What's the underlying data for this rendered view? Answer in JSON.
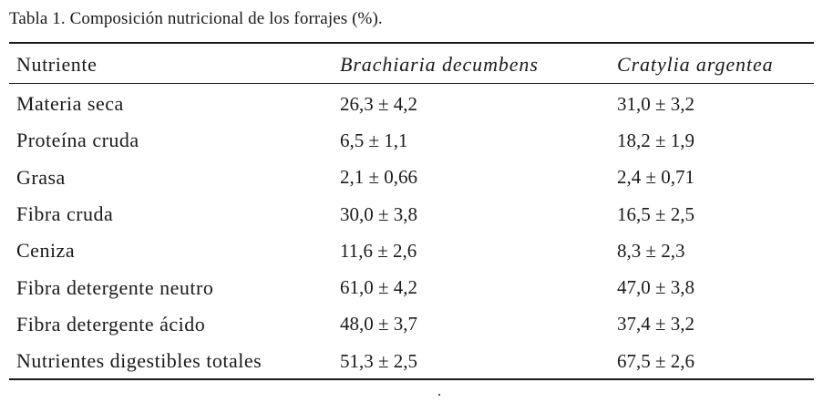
{
  "caption": "Tabla 1. Composición nutricional de los forrajes (%).",
  "table": {
    "headers": [
      "Nutriente",
      "Brachiaria decumbens",
      "Cratylia argentea"
    ],
    "rows": [
      {
        "nutrient": "Materia seca",
        "brachiaria": "26,3 ± 4,2",
        "cratylia": "31,0 ± 3,2"
      },
      {
        "nutrient": "Proteína cruda",
        "brachiaria": "6,5 ± 1,1",
        "cratylia": "18,2 ± 1,9"
      },
      {
        "nutrient": "Grasa",
        "brachiaria": "2,1 ± 0,66",
        "cratylia": "2,4 ± 0,71"
      },
      {
        "nutrient": "Fibra cruda",
        "brachiaria": "30,0 ± 3,8",
        "cratylia": "16,5 ± 2,5"
      },
      {
        "nutrient": "Ceniza",
        "brachiaria": "11,6 ± 2,6",
        "cratylia": "8,3 ± 2,3"
      },
      {
        "nutrient": "Fibra detergente neutro",
        "brachiaria": "61,0 ± 4,2",
        "cratylia": "47,0 ± 3,8"
      },
      {
        "nutrient": "Fibra detergente ácido",
        "brachiaria": "48,0 ± 3,7",
        "cratylia": "37,4 ± 3,2"
      },
      {
        "nutrient": "Nutrientes digestibles totales",
        "brachiaria": "51,3 ± 2,5",
        "cratylia": "67,5 ± 2,6"
      }
    ]
  }
}
